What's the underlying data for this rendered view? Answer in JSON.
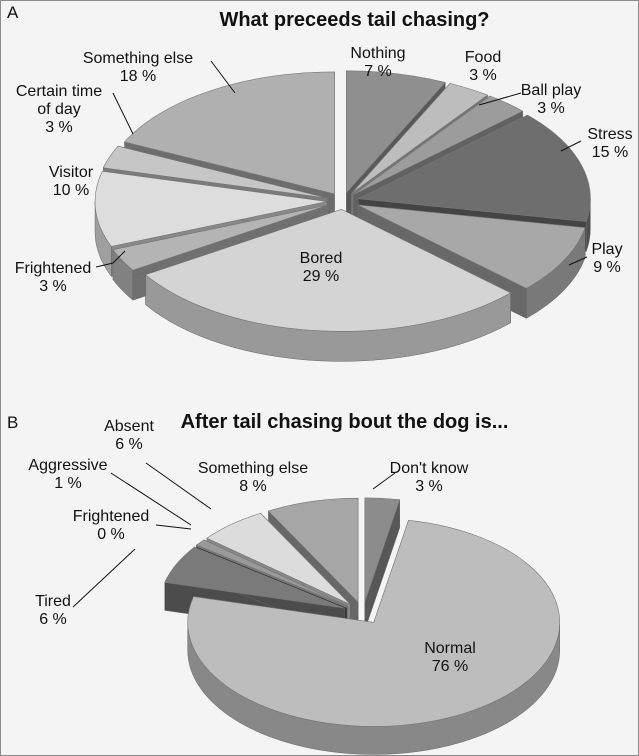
{
  "chart_data": [
    {
      "panel": "A",
      "type": "pie",
      "title": "What preceeds tail chasing?",
      "slices": [
        {
          "label": "Nothing",
          "value": 7,
          "value_text": "7 %",
          "color": "#8f8f8f"
        },
        {
          "label": "Food",
          "value": 3,
          "value_text": "3 %",
          "color": "#bdbdbd"
        },
        {
          "label": "Ball play",
          "value": 3,
          "value_text": "3 %",
          "color": "#9c9c9c"
        },
        {
          "label": "Stress",
          "value": 15,
          "value_text": "15 %",
          "color": "#6e6e6e"
        },
        {
          "label": "Play",
          "value": 9,
          "value_text": "9 %",
          "color": "#a8a8a8"
        },
        {
          "label": "Bored",
          "value": 29,
          "value_text": "29 %",
          "color": "#d4d4d4"
        },
        {
          "label": "Frightened",
          "value": 3,
          "value_text": "3 %",
          "color": "#b4b4b4"
        },
        {
          "label": "Visitor",
          "value": 10,
          "value_text": "10 %",
          "color": "#dddddd"
        },
        {
          "label": "Certain time of day",
          "value": 3,
          "value_text": "3 %",
          "color": "#c6c6c6"
        },
        {
          "label": "Something else",
          "value": 18,
          "value_text": "18 %",
          "color": "#b0b0b0"
        }
      ]
    },
    {
      "panel": "B",
      "type": "pie",
      "title": "After tail chasing bout the dog is...",
      "slices": [
        {
          "label": "Don't know",
          "value": 3,
          "value_text": "3 %",
          "color": "#8c8c8c"
        },
        {
          "label": "Normal",
          "value": 76,
          "value_text": "76 %",
          "color": "#bdbdbd"
        },
        {
          "label": "Tired",
          "value": 6,
          "value_text": "6 %",
          "color": "#7a7a7a"
        },
        {
          "label": "Frightened",
          "value": 0,
          "value_text": "0 %",
          "color": "#333333"
        },
        {
          "label": "Aggressive",
          "value": 1,
          "value_text": "1 %",
          "color": "#9a9a9a"
        },
        {
          "label": "Absent",
          "value": 6,
          "value_text": "6 %",
          "color": "#dcdcdc"
        },
        {
          "label": "Something else",
          "value": 8,
          "value_text": "8 %",
          "color": "#a6a6a6"
        }
      ]
    }
  ]
}
